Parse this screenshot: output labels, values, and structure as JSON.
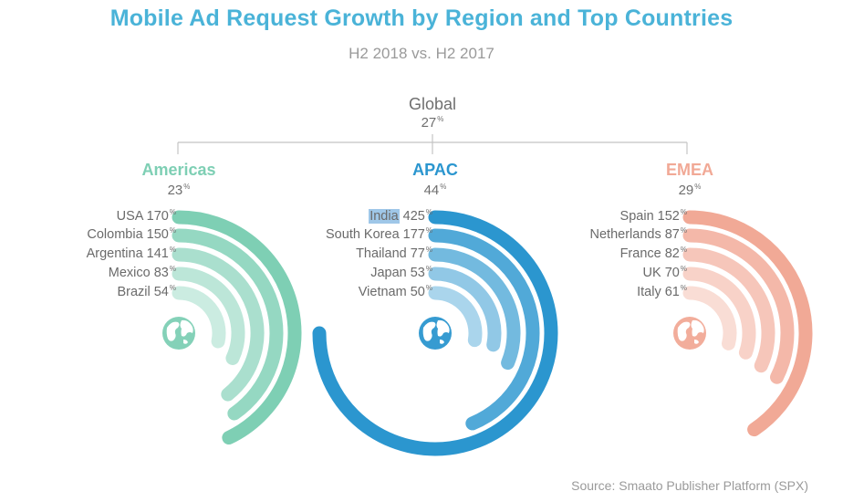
{
  "header": {
    "title": "Mobile Ad Request Growth by Region and Top Countries",
    "subtitle": "H2 2018 vs. H2 2017"
  },
  "global": {
    "name": "Global",
    "value": "27",
    "unit": "%"
  },
  "source": "Source: Smaato Publisher Platform (SPX)",
  "chart_data": {
    "type": "radial-bar",
    "title": "Mobile Ad Request Growth by Region and Top Countries",
    "subtitle": "H2 2018 vs. H2 2017",
    "unit": "%",
    "global": {
      "name": "Global",
      "value": 27
    },
    "regions": [
      {
        "name": "Americas",
        "value": 23,
        "color": "#7ecfb4",
        "countries": [
          {
            "name": "USA",
            "value": 170
          },
          {
            "name": "Colombia",
            "value": 150
          },
          {
            "name": "Argentina",
            "value": 141
          },
          {
            "name": "Mexico",
            "value": 83
          },
          {
            "name": "Brazil",
            "value": 54
          }
        ]
      },
      {
        "name": "APAC",
        "value": 44,
        "color": "#2b96cf",
        "countries": [
          {
            "name": "India",
            "value": 425
          },
          {
            "name": "South Korea",
            "value": 177
          },
          {
            "name": "Thailand",
            "value": 77
          },
          {
            "name": "Japan",
            "value": 53
          },
          {
            "name": "Vietnam",
            "value": 50
          }
        ]
      },
      {
        "name": "EMEA",
        "value": 29,
        "color": "#f1a996",
        "countries": [
          {
            "name": "Spain",
            "value": 152
          },
          {
            "name": "Netherlands",
            "value": 87
          },
          {
            "name": "France",
            "value": 82
          },
          {
            "name": "UK",
            "value": 70
          },
          {
            "name": "Italy",
            "value": 61
          }
        ]
      }
    ]
  },
  "colors": {
    "title": "#4ab3d8",
    "americas": "#7ecfb4",
    "apac": "#2b96cf",
    "emea": "#f1a996",
    "connector": "#c4c4c4"
  }
}
